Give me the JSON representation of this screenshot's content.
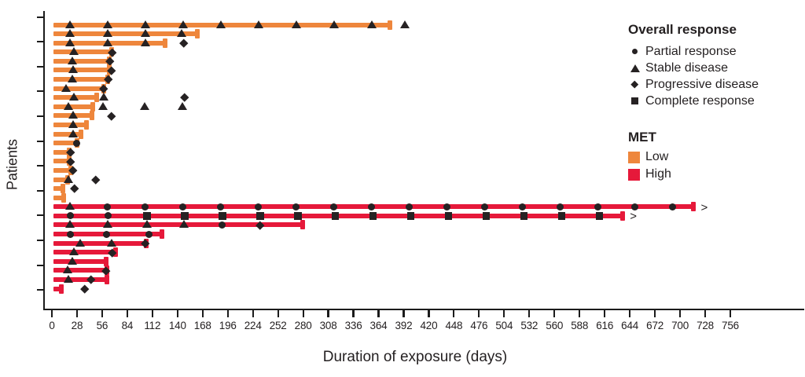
{
  "figure": {
    "y_axis_label": "Patients",
    "x_axis_label": "Duration of exposure (days)"
  },
  "colors": {
    "met_low": "#EE863C",
    "met_high": "#E6193A",
    "marker": "#262223",
    "axis": "#1B1B1B"
  },
  "legend": {
    "response": {
      "title": "Overall response",
      "items": [
        {
          "glyph": "circle",
          "code": "PR",
          "label": "Partial response"
        },
        {
          "glyph": "triangle",
          "code": "SD",
          "label": "Stable disease"
        },
        {
          "glyph": "diamond",
          "code": "PD",
          "label": "Progressive disease"
        },
        {
          "glyph": "square",
          "code": "CR",
          "label": "Complete response"
        }
      ]
    },
    "met": {
      "title": "MET",
      "items": [
        {
          "key": "Low",
          "label": "Low",
          "color": "#EE863C"
        },
        {
          "key": "High",
          "label": "High",
          "color": "#E6193A"
        }
      ]
    }
  },
  "chart_data": {
    "type": "bar",
    "variant": "swimmer",
    "orientation": "horizontal",
    "title": "",
    "xlabel": "Duration of exposure (days)",
    "ylabel": "Patients",
    "xlim": [
      0,
      839
    ],
    "x_ticks": [
      0,
      28,
      56,
      84,
      112,
      140,
      168,
      196,
      224,
      252,
      280,
      308,
      336,
      364,
      392,
      420,
      448,
      476,
      504,
      532,
      560,
      588,
      616,
      644,
      672,
      700,
      728,
      756
    ],
    "grid": false,
    "legend_position": "upper right",
    "marker_glyphs": {
      "PR": "circle",
      "SD": "triangle",
      "PD": "diamond",
      "CR": "square"
    },
    "patients": [
      {
        "met": "Low",
        "duration": 378,
        "ongoing": false,
        "markers": [
          {
            "t": "SD",
            "d": 21
          },
          {
            "t": "SD",
            "d": 63
          },
          {
            "t": "SD",
            "d": 105
          },
          {
            "t": "SD",
            "d": 147
          },
          {
            "t": "SD",
            "d": 189
          },
          {
            "t": "SD",
            "d": 231
          },
          {
            "t": "SD",
            "d": 273
          },
          {
            "t": "SD",
            "d": 315
          },
          {
            "t": "SD",
            "d": 357
          },
          {
            "t": "SD",
            "d": 394
          }
        ]
      },
      {
        "met": "Low",
        "duration": 164,
        "ongoing": false,
        "markers": [
          {
            "t": "SD",
            "d": 21
          },
          {
            "t": "SD",
            "d": 63
          },
          {
            "t": "SD",
            "d": 105
          },
          {
            "t": "SD",
            "d": 145
          }
        ]
      },
      {
        "met": "Low",
        "duration": 128,
        "ongoing": false,
        "markers": [
          {
            "t": "SD",
            "d": 21
          },
          {
            "t": "SD",
            "d": 63
          },
          {
            "t": "SD",
            "d": 105
          },
          {
            "t": "PD",
            "d": 147
          }
        ]
      },
      {
        "met": "Low",
        "duration": 68,
        "ongoing": false,
        "markers": [
          {
            "t": "SD",
            "d": 25
          },
          {
            "t": "PD",
            "d": 67
          }
        ]
      },
      {
        "met": "Low",
        "duration": 66,
        "ongoing": false,
        "markers": [
          {
            "t": "SD",
            "d": 23
          },
          {
            "t": "PD",
            "d": 65
          }
        ]
      },
      {
        "met": "Low",
        "duration": 66,
        "ongoing": false,
        "markers": [
          {
            "t": "SD",
            "d": 24
          },
          {
            "t": "PD",
            "d": 66
          }
        ]
      },
      {
        "met": "Low",
        "duration": 64,
        "ongoing": false,
        "markers": [
          {
            "t": "SD",
            "d": 23
          },
          {
            "t": "PD",
            "d": 63
          }
        ]
      },
      {
        "met": "Low",
        "duration": 60,
        "ongoing": false,
        "markers": [
          {
            "t": "SD",
            "d": 16
          },
          {
            "t": "PD",
            "d": 58
          }
        ]
      },
      {
        "met": "Low",
        "duration": 52,
        "ongoing": false,
        "markers": [
          {
            "t": "SD",
            "d": 25
          },
          {
            "t": "SD",
            "d": 58
          },
          {
            "t": "PD",
            "d": 148
          }
        ]
      },
      {
        "met": "Low",
        "duration": 47,
        "ongoing": false,
        "markers": [
          {
            "t": "SD",
            "d": 19
          },
          {
            "t": "SD",
            "d": 57
          },
          {
            "t": "SD",
            "d": 104
          },
          {
            "t": "SD",
            "d": 146
          }
        ]
      },
      {
        "met": "Low",
        "duration": 46,
        "ongoing": false,
        "markers": [
          {
            "t": "SD",
            "d": 24
          },
          {
            "t": "PD",
            "d": 66
          }
        ]
      },
      {
        "met": "Low",
        "duration": 40,
        "ongoing": false,
        "markers": [
          {
            "t": "SD",
            "d": 24
          }
        ]
      },
      {
        "met": "Low",
        "duration": 34,
        "ongoing": false,
        "markers": [
          {
            "t": "SD",
            "d": 24
          }
        ]
      },
      {
        "met": "Low",
        "duration": 30,
        "ongoing": false,
        "markers": [
          {
            "t": "PR",
            "d": 28
          }
        ]
      },
      {
        "met": "Low",
        "duration": 21,
        "ongoing": false,
        "markers": [
          {
            "t": "PD",
            "d": 21
          }
        ]
      },
      {
        "met": "Low",
        "duration": 21,
        "ongoing": false,
        "markers": [
          {
            "t": "PD",
            "d": 21
          }
        ]
      },
      {
        "met": "Low",
        "duration": 23,
        "ongoing": false,
        "markers": [
          {
            "t": "PD",
            "d": 23
          }
        ]
      },
      {
        "met": "Low",
        "duration": 19,
        "ongoing": false,
        "markers": [
          {
            "t": "SD",
            "d": 19
          },
          {
            "t": "PD",
            "d": 49
          }
        ]
      },
      {
        "met": "Low",
        "duration": 14,
        "ongoing": false,
        "markers": [
          {
            "t": "PD",
            "d": 25
          }
        ]
      },
      {
        "met": "Low",
        "duration": 15,
        "ongoing": false,
        "markers": []
      },
      {
        "met": "High",
        "duration": 717,
        "ongoing": true,
        "markers": [
          {
            "t": "SD",
            "d": 21
          },
          {
            "t": "PR",
            "d": 62
          },
          {
            "t": "PR",
            "d": 104
          },
          {
            "t": "PR",
            "d": 146
          },
          {
            "t": "PR",
            "d": 188
          },
          {
            "t": "PR",
            "d": 230
          },
          {
            "t": "PR",
            "d": 272
          },
          {
            "t": "PR",
            "d": 314
          },
          {
            "t": "PR",
            "d": 356
          },
          {
            "t": "PR",
            "d": 398
          },
          {
            "t": "PR",
            "d": 440
          },
          {
            "t": "PR",
            "d": 482
          },
          {
            "t": "PR",
            "d": 524
          },
          {
            "t": "PR",
            "d": 566
          },
          {
            "t": "PR",
            "d": 608
          },
          {
            "t": "PR",
            "d": 650
          },
          {
            "t": "PR",
            "d": 692
          }
        ]
      },
      {
        "met": "High",
        "duration": 638,
        "ongoing": true,
        "markers": [
          {
            "t": "PR",
            "d": 21
          },
          {
            "t": "PR",
            "d": 63
          },
          {
            "t": "CR",
            "d": 106
          },
          {
            "t": "CR",
            "d": 148
          },
          {
            "t": "CR",
            "d": 190
          },
          {
            "t": "CR",
            "d": 232
          },
          {
            "t": "CR",
            "d": 274
          },
          {
            "t": "CR",
            "d": 316
          },
          {
            "t": "CR",
            "d": 358
          },
          {
            "t": "CR",
            "d": 400
          },
          {
            "t": "CR",
            "d": 442
          },
          {
            "t": "CR",
            "d": 484
          },
          {
            "t": "CR",
            "d": 526
          },
          {
            "t": "CR",
            "d": 568
          },
          {
            "t": "CR",
            "d": 610
          }
        ]
      },
      {
        "met": "High",
        "duration": 281,
        "ongoing": false,
        "markers": [
          {
            "t": "SD",
            "d": 21
          },
          {
            "t": "SD",
            "d": 63
          },
          {
            "t": "SD",
            "d": 106
          },
          {
            "t": "SD",
            "d": 148
          },
          {
            "t": "PR",
            "d": 190
          },
          {
            "t": "PD",
            "d": 232
          }
        ]
      },
      {
        "met": "High",
        "duration": 124,
        "ongoing": false,
        "markers": [
          {
            "t": "PR",
            "d": 21
          },
          {
            "t": "PR",
            "d": 61
          },
          {
            "t": "PR",
            "d": 108
          }
        ]
      },
      {
        "met": "High",
        "duration": 107,
        "ongoing": false,
        "markers": [
          {
            "t": "SD",
            "d": 32
          },
          {
            "t": "SD",
            "d": 67
          },
          {
            "t": "PD",
            "d": 104
          }
        ]
      },
      {
        "met": "High",
        "duration": 73,
        "ongoing": false,
        "markers": [
          {
            "t": "SD",
            "d": 25
          },
          {
            "t": "PD",
            "d": 67
          }
        ]
      },
      {
        "met": "High",
        "duration": 62,
        "ongoing": false,
        "markers": [
          {
            "t": "SD",
            "d": 23
          }
        ]
      },
      {
        "met": "High",
        "duration": 63,
        "ongoing": false,
        "markers": [
          {
            "t": "SD",
            "d": 18
          },
          {
            "t": "PD",
            "d": 60
          }
        ]
      },
      {
        "met": "High",
        "duration": 63,
        "ongoing": false,
        "markers": [
          {
            "t": "SD",
            "d": 19
          },
          {
            "t": "PD",
            "d": 44
          }
        ]
      },
      {
        "met": "High",
        "duration": 12,
        "ongoing": false,
        "markers": [
          {
            "t": "PD",
            "d": 37
          }
        ]
      }
    ]
  }
}
